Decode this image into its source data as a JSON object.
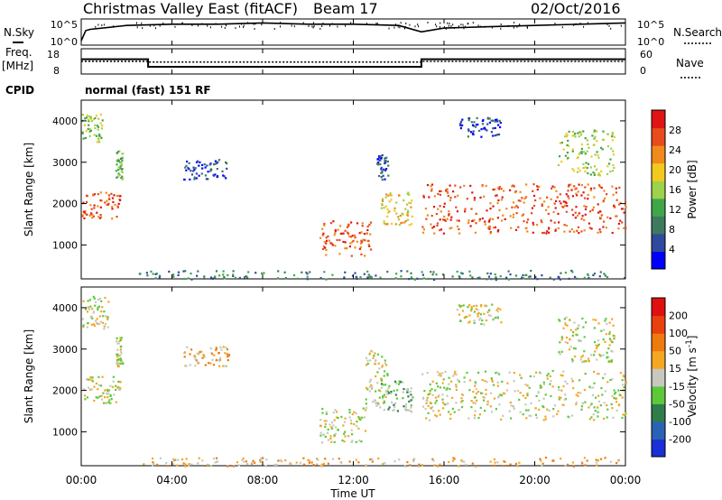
{
  "header": {
    "station": "Christmas Valley East (fitACF)",
    "beam": "Beam 17",
    "date": "02/Oct/2016"
  },
  "status_panel": {
    "left_labels": [
      "N.Sky",
      "Freq.",
      "[MHz]",
      "CPID"
    ],
    "right_labels": [
      "N.Search",
      "Nave"
    ],
    "noise_ticks_left": [
      "10^5",
      "10^0"
    ],
    "noise_ticks_right": [
      "10^5",
      "10^0"
    ],
    "freq_ticks": [
      "18",
      "8"
    ],
    "nave_ticks": [
      "60",
      "0"
    ],
    "cpid_text": "normal (fast) 151 RF"
  },
  "x_ticks": [
    "00:00",
    "04:00",
    "08:00",
    "12:00",
    "16:00",
    "20:00",
    "00:00"
  ],
  "x_label": "Time UT",
  "colors": {
    "power_scale": [
      "#0000ff",
      "#2e4a9c",
      "#3d7a5e",
      "#3fa64a",
      "#9ed14c",
      "#f2c91f",
      "#f08a1c",
      "#e84b1c",
      "#e01414"
    ],
    "velocity_scale": [
      "#1a2fd6",
      "#2a63b5",
      "#2f7d4a",
      "#5dc93a",
      "#c8c8c0",
      "#f5a623",
      "#ef7a0e",
      "#e8400e",
      "#e01010"
    ]
  },
  "chart_data": [
    {
      "type": "line",
      "title": "Christmas Valley East (fitACF) Beam 17 02/Oct/2016",
      "panel": "noise",
      "series": [
        {
          "name": "N.Sky"
        },
        {
          "name": "N.Search"
        }
      ],
      "x": [
        0,
        0.2,
        0.4,
        2,
        4,
        6,
        8,
        10,
        12,
        14,
        15,
        16,
        18,
        20,
        22,
        24
      ],
      "y_log10": [
        0.2,
        1.0,
        1.1,
        1.4,
        1.5,
        1.5,
        1.6,
        1.5,
        1.5,
        1.4,
        0.9,
        1.2,
        1.3,
        1.4,
        1.5,
        1.6
      ]
    },
    {
      "type": "line",
      "panel": "frequency",
      "series": [
        {
          "name": "Freq."
        }
      ],
      "x": [
        0,
        2.95,
        2.95,
        15.0,
        15.0,
        24
      ],
      "y": [
        14.0,
        14.0,
        10.5,
        10.5,
        14.0,
        14.0
      ],
      "ylim": [
        8,
        18
      ],
      "nave_x": [
        0,
        2.95,
        2.95,
        15.0,
        15.0,
        24
      ],
      "nave": [
        30,
        30,
        28,
        28,
        30,
        30
      ]
    },
    {
      "type": "heatmap",
      "panel": "power",
      "ylabel": "Slant Range [km]",
      "colorbar_label": "Power [dB]",
      "colorbar_ticks": [
        "28",
        "24",
        "20",
        "16",
        "12",
        "8",
        "4"
      ],
      "y_ticks": [
        "1000",
        "2000",
        "3000",
        "4000"
      ],
      "xlim": [
        0,
        24
      ],
      "ylim": [
        180,
        4500
      ],
      "regions": [
        {
          "t0": 0.0,
          "t1": 1.7,
          "r0": 1650,
          "r1": 2350,
          "level": 7
        },
        {
          "t0": 0.0,
          "t1": 0.9,
          "r0": 3500,
          "r1": 4200,
          "level": 4
        },
        {
          "t0": 1.5,
          "t1": 1.8,
          "r0": 2600,
          "r1": 3300,
          "level": 3
        },
        {
          "t0": 4.5,
          "t1": 6.5,
          "r0": 2600,
          "r1": 3100,
          "level": 1
        },
        {
          "t0": 10.5,
          "t1": 12.8,
          "r0": 750,
          "r1": 1600,
          "level": 7
        },
        {
          "t0": 13.2,
          "t1": 14.6,
          "r0": 1500,
          "r1": 2300,
          "level": 5
        },
        {
          "t0": 13.0,
          "t1": 13.5,
          "r0": 2600,
          "r1": 3200,
          "level": 1
        },
        {
          "t0": 15.0,
          "t1": 24.0,
          "r0": 1300,
          "r1": 2500,
          "level": 7
        },
        {
          "t0": 16.5,
          "t1": 18.5,
          "r0": 3600,
          "r1": 4100,
          "level": 1
        },
        {
          "t0": 21.0,
          "t1": 23.5,
          "r0": 2700,
          "r1": 3800,
          "level": 4
        },
        {
          "t0": 2.5,
          "t1": 24.0,
          "r0": 180,
          "r1": 400,
          "level": 2
        }
      ]
    },
    {
      "type": "heatmap",
      "panel": "velocity",
      "ylabel": "Slant Range [km]",
      "colorbar_label": "Velocity [m s^-1]",
      "colorbar_ticks": [
        "200",
        "100",
        "50",
        "15",
        "-15",
        "-50",
        "-100",
        "-200"
      ],
      "y_ticks": [
        "1000",
        "2000",
        "3000",
        "4000"
      ],
      "xlim": [
        0,
        24
      ],
      "ylim": [
        180,
        4500
      ],
      "regions": [
        {
          "t0": 0.0,
          "t1": 1.7,
          "r0": 1700,
          "r1": 2350,
          "level": 4
        },
        {
          "t0": 0.0,
          "t1": 1.2,
          "r0": 3500,
          "r1": 4300,
          "level": 4
        },
        {
          "t0": 1.5,
          "t1": 1.8,
          "r0": 2600,
          "r1": 3300,
          "level": 4
        },
        {
          "t0": 4.5,
          "t1": 6.5,
          "r0": 2600,
          "r1": 3100,
          "level": 5
        },
        {
          "t0": 10.5,
          "t1": 12.5,
          "r0": 750,
          "r1": 1600,
          "level": 4
        },
        {
          "t0": 12.5,
          "t1": 13.5,
          "r0": 1600,
          "r1": 3000,
          "level": 4
        },
        {
          "t0": 13.2,
          "t1": 14.6,
          "r0": 1500,
          "r1": 2300,
          "level": 3
        },
        {
          "t0": 15.0,
          "t1": 24.0,
          "r0": 1300,
          "r1": 2500,
          "level": 4
        },
        {
          "t0": 16.5,
          "t1": 18.5,
          "r0": 3600,
          "r1": 4100,
          "level": 4
        },
        {
          "t0": 21.0,
          "t1": 23.5,
          "r0": 2700,
          "r1": 3800,
          "level": 4
        },
        {
          "t0": 2.5,
          "t1": 24.0,
          "r0": 180,
          "r1": 400,
          "level": 5
        }
      ]
    }
  ]
}
